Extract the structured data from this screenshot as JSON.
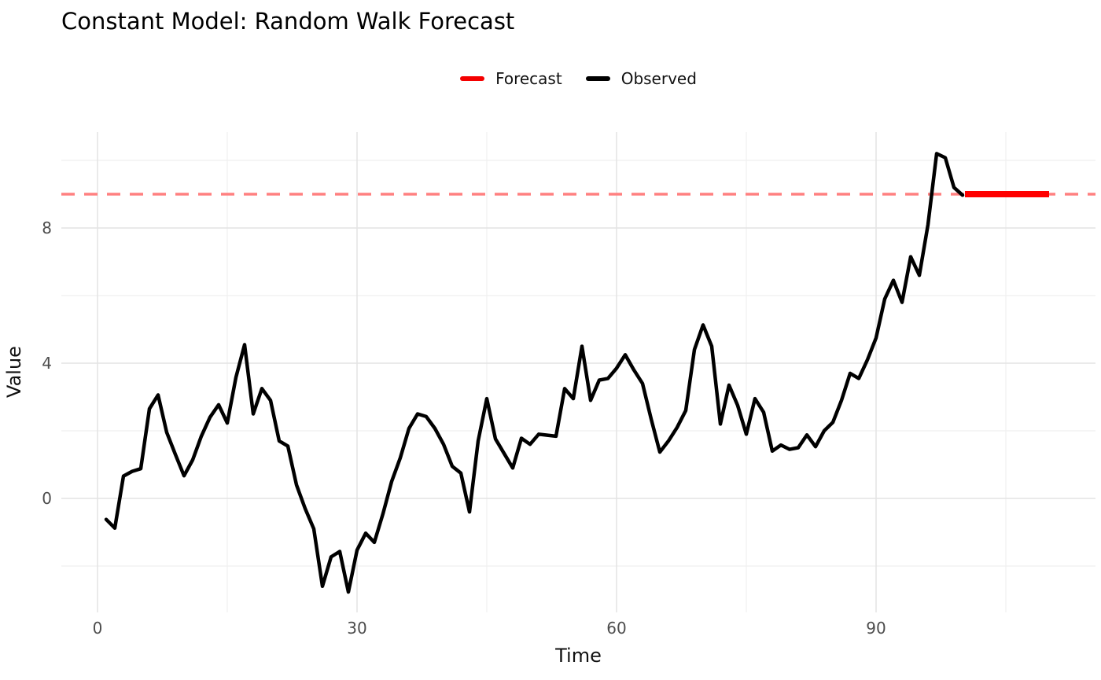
{
  "title": "Constant Model: Random Walk Forecast",
  "legend": {
    "items": [
      {
        "label": "Forecast",
        "color": "#f40000"
      },
      {
        "label": "Observed",
        "color": "#000000"
      }
    ]
  },
  "axes": {
    "x": {
      "label": "Time",
      "major_ticks": [
        0,
        30,
        60,
        90
      ],
      "minor_gridlines": [
        15,
        45,
        75,
        105
      ]
    },
    "y": {
      "label": "Value",
      "major_ticks": [
        0,
        4,
        8
      ],
      "minor_gridlines": [
        -2,
        2,
        6,
        10
      ]
    }
  },
  "colors": {
    "background": "#ffffff",
    "grid_major": "#e4e4e4",
    "grid_minor": "#efefef",
    "observed_line": "#000000",
    "forecast_line": "#ff0000",
    "forecast_dashed": "#ff8080",
    "tick_text": "#4d4d4d",
    "axis_title_text": "#111111",
    "title_text": "#000000"
  },
  "chart_data": {
    "type": "line",
    "title": "Constant Model: Random Walk Forecast",
    "xlabel": "Time",
    "ylabel": "Value",
    "xlim": [
      -4.2,
      115.4
    ],
    "ylim": [
      -3.4,
      10.85
    ],
    "grid": true,
    "legend_position": "top-center",
    "x_major_ticks": [
      0,
      30,
      60,
      90
    ],
    "x_minor_gridlines": [
      15,
      45,
      75,
      105
    ],
    "y_major_ticks": [
      0,
      4,
      8
    ],
    "y_minor_gridlines": [
      -2,
      2,
      6,
      10
    ],
    "series": [
      {
        "name": "Observed",
        "style": "solid",
        "color": "#000000",
        "t_start": 1,
        "t_step": 1,
        "values": [
          -0.62,
          -0.88,
          0.66,
          0.8,
          0.88,
          2.65,
          3.06,
          1.95,
          1.3,
          0.67,
          1.14,
          1.84,
          2.4,
          2.77,
          2.23,
          3.58,
          4.55,
          2.5,
          3.25,
          2.9,
          1.7,
          1.55,
          0.4,
          -0.3,
          -0.9,
          -2.6,
          -1.73,
          -1.57,
          -2.77,
          -1.53,
          -1.03,
          -1.3,
          -0.45,
          0.5,
          1.2,
          2.07,
          2.5,
          2.42,
          2.07,
          1.6,
          0.95,
          0.75,
          -0.4,
          1.7,
          2.95,
          1.76,
          1.33,
          0.9,
          1.78,
          1.6,
          1.9,
          1.87,
          1.84,
          3.25,
          2.95,
          4.5,
          2.9,
          3.5,
          3.55,
          3.85,
          4.25,
          3.8,
          3.4,
          2.35,
          1.37,
          1.7,
          2.1,
          2.6,
          4.4,
          5.13,
          4.5,
          2.2,
          3.35,
          2.75,
          1.9,
          2.95,
          2.55,
          1.4,
          1.58,
          1.45,
          1.5,
          1.88,
          1.53,
          2.0,
          2.25,
          2.9,
          3.7,
          3.55,
          4.1,
          4.75,
          5.9,
          6.45,
          5.8,
          7.15,
          6.6,
          8.1,
          10.2,
          10.08,
          9.2,
          8.97
        ]
      },
      {
        "name": "Forecast",
        "style": "solid",
        "color": "#ff0000",
        "x": [
          100,
          110
        ],
        "y": [
          9.0,
          9.0
        ]
      },
      {
        "name": "Forecast level",
        "style": "dashed",
        "color": "#ff8080",
        "hline_y": 9.0
      }
    ]
  }
}
